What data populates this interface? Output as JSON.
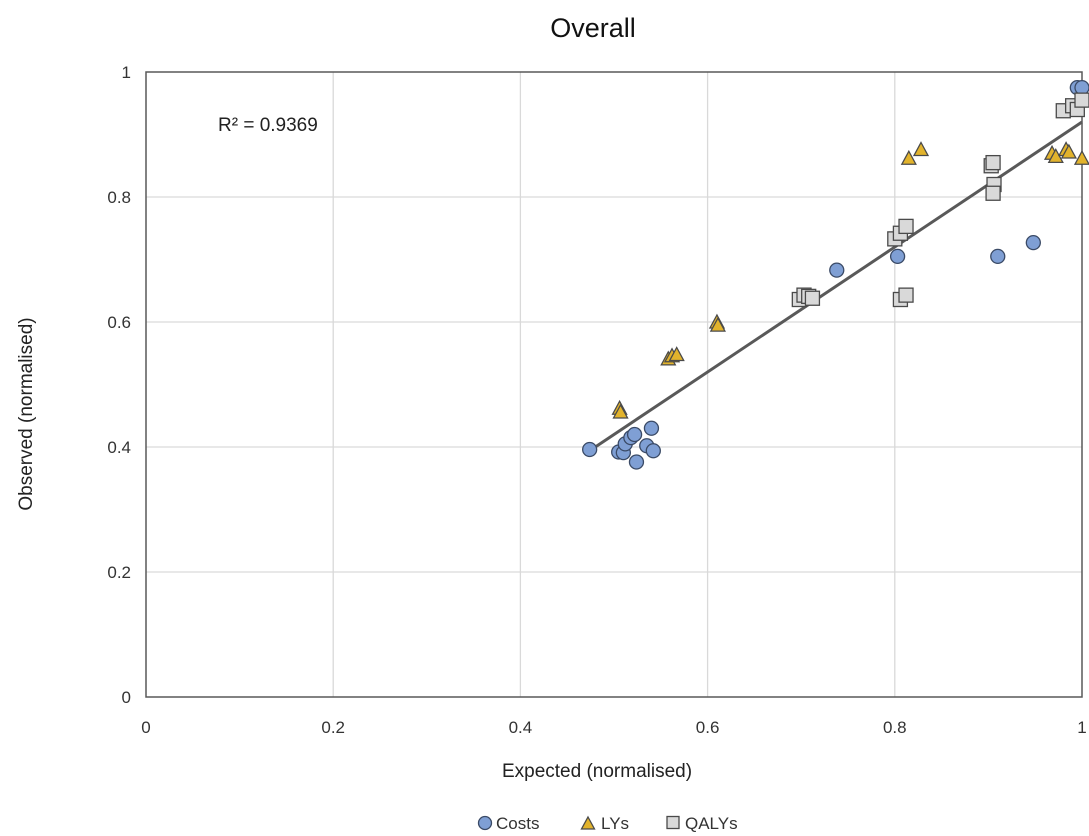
{
  "chart_data": {
    "type": "scatter",
    "title": "Overall",
    "xlabel": "Expected (normalised)",
    "ylabel": "Observed (normalised)",
    "xlim": [
      0,
      1
    ],
    "ylim": [
      0,
      1
    ],
    "xticks": [
      0,
      0.2,
      0.4,
      0.6,
      0.8,
      1
    ],
    "yticks": [
      0,
      0.2,
      0.4,
      0.6,
      0.8,
      1
    ],
    "xtick_labels": [
      "0",
      "0.2",
      "0.4",
      "0.6",
      "0.8",
      "1"
    ],
    "ytick_labels": [
      "0",
      "0.2",
      "0.4",
      "0.6",
      "0.8",
      "1"
    ],
    "grid": true,
    "legend_position": "bottom",
    "annotation": "R² = 0.9369",
    "trendline": {
      "x": [
        0.48,
        1.0
      ],
      "y": [
        0.4,
        0.92
      ]
    },
    "series": [
      {
        "name": "Costs",
        "marker": "circle",
        "color": "#7f9fd4",
        "x": [
          0.474,
          0.505,
          0.51,
          0.512,
          0.518,
          0.522,
          0.524,
          0.535,
          0.54,
          0.542,
          0.738,
          0.803,
          0.91,
          0.948,
          0.995,
          1.0
        ],
        "y": [
          0.396,
          0.392,
          0.391,
          0.405,
          0.415,
          0.42,
          0.376,
          0.402,
          0.43,
          0.394,
          0.683,
          0.705,
          0.705,
          0.727,
          0.975,
          0.975
        ]
      },
      {
        "name": "LYs",
        "marker": "triangle",
        "color": "#e2b32c",
        "x": [
          0.506,
          0.507,
          0.558,
          0.562,
          0.567,
          0.61,
          0.611,
          0.815,
          0.828,
          0.968,
          0.972,
          0.983,
          0.986,
          1.0
        ],
        "y": [
          0.462,
          0.456,
          0.541,
          0.546,
          0.548,
          0.6,
          0.595,
          0.862,
          0.876,
          0.87,
          0.865,
          0.876,
          0.872,
          0.862
        ]
      },
      {
        "name": "QALYs",
        "marker": "square",
        "color": "#d9d9d9",
        "x": [
          0.698,
          0.703,
          0.708,
          0.712,
          0.8,
          0.806,
          0.812,
          0.806,
          0.812,
          0.903,
          0.905,
          0.906,
          0.905,
          0.98,
          0.99,
          0.995,
          1.0
        ],
        "y": [
          0.636,
          0.643,
          0.641,
          0.638,
          0.733,
          0.742,
          0.753,
          0.636,
          0.643,
          0.85,
          0.855,
          0.82,
          0.806,
          0.938,
          0.946,
          0.94,
          0.955
        ]
      }
    ]
  }
}
